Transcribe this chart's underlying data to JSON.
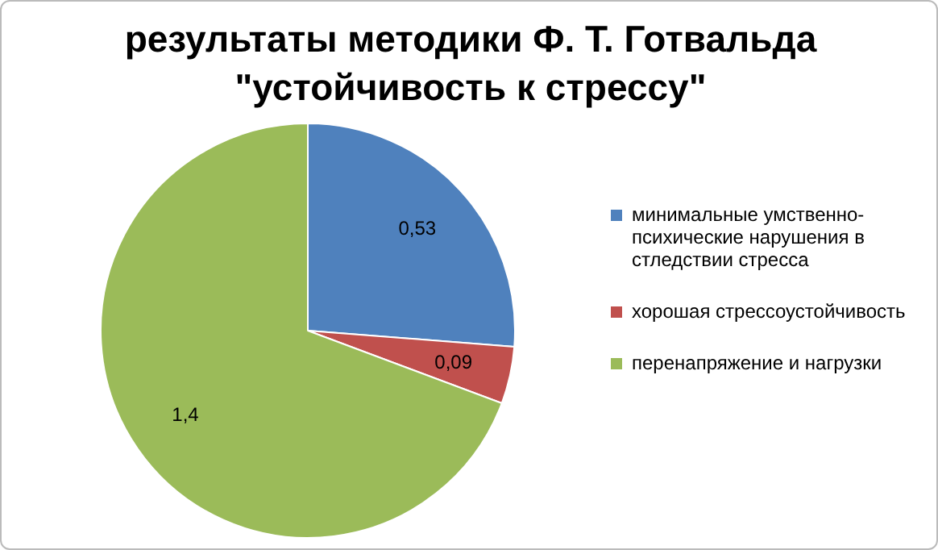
{
  "chart_data": {
    "type": "pie",
    "title": "результаты методики Ф. Т. Готвальда\n\"устойчивость к стрессу\"",
    "categories": [
      "минимальные умственно-психические нарушения в стледствии стресса",
      "хорошая стрессоустойчивость",
      "перенапряжение и нагрузки"
    ],
    "values": [
      0.53,
      0.09,
      1.4
    ],
    "colors": [
      "#4f81bd",
      "#c0504d",
      "#9bbb59"
    ],
    "value_labels": [
      "0,53",
      "0,09",
      "1,4"
    ],
    "legend": "right"
  }
}
